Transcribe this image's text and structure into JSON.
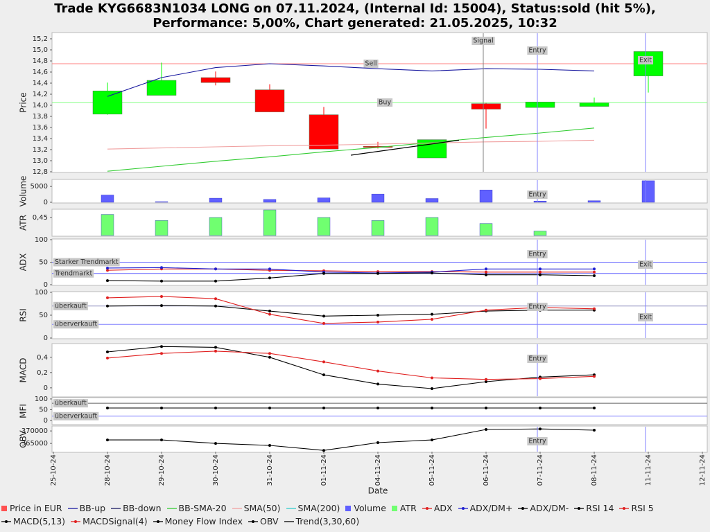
{
  "title": [
    "Trade KYG6683N1034 LONG on 07.11.2024, (Internal Id: 15004), Status:sold (hit 5%),",
    "Performance: 5,00%, Chart generated: 21.05.2025, 10:32"
  ],
  "chart_data": [
    {
      "type": "candlestick",
      "ylabel": "Price",
      "xlabel": "Date",
      "categories": [
        "25-10-24",
        "28-10-24",
        "29-10-24",
        "30-10-24",
        "31-10-24",
        "01-11-24",
        "04-11-24",
        "05-11-24",
        "06-11-24",
        "07-11-24",
        "08-11-24",
        "11-11-24",
        "12-11-24"
      ],
      "ylim": [
        12.8,
        15.3
      ],
      "yticks": [
        {
          "value": 12.8,
          "label": "12,8"
        },
        {
          "value": 13.0,
          "label": "13,0"
        },
        {
          "value": 13.2,
          "label": "13,2"
        },
        {
          "value": 13.4,
          "label": "13,4"
        },
        {
          "value": 13.6,
          "label": "13,6"
        },
        {
          "value": 13.8,
          "label": "13,8"
        },
        {
          "value": 14.0,
          "label": "14,0"
        },
        {
          "value": 14.2,
          "label": "14,2"
        },
        {
          "value": 14.4,
          "label": "14,4"
        },
        {
          "value": 14.6,
          "label": "14,6"
        },
        {
          "value": 14.8,
          "label": "14,8"
        },
        {
          "value": 15.0,
          "label": "15,0"
        },
        {
          "value": 15.2,
          "label": "15,2"
        }
      ],
      "hlines": [
        {
          "value": 14.75,
          "label": "Sell",
          "color": "#ff8080"
        },
        {
          "value": 14.05,
          "label": "Buy",
          "color": "#80ff80"
        }
      ],
      "vlines": [
        {
          "x": "06-11-24",
          "label": "Signal",
          "color": "#808080"
        },
        {
          "x": "07-11-24",
          "label": "Entry",
          "color": "#8080ff"
        },
        {
          "x": "11-11-24",
          "label": "Exit",
          "color": "#8080ff"
        }
      ],
      "series": [
        {
          "name": "Price in EUR",
          "color": "#ff5050",
          "up_color": "#00ff00",
          "down_color": "#ff0000",
          "open": [
            null,
            13.84,
            14.18,
            14.5,
            14.28,
            13.83,
            13.26,
            13.05,
            14.03,
            13.96,
            13.98,
            14.53,
            null
          ],
          "high": [
            null,
            14.41,
            14.77,
            14.61,
            14.38,
            13.97,
            13.34,
            13.38,
            14.04,
            14.06,
            14.14,
            14.97,
            null
          ],
          "low": [
            null,
            13.83,
            14.18,
            14.36,
            13.88,
            13.21,
            13.22,
            13.05,
            13.58,
            13.96,
            13.98,
            14.23,
            null
          ],
          "close": [
            null,
            14.26,
            14.45,
            14.41,
            13.88,
            13.21,
            13.24,
            13.38,
            13.93,
            14.06,
            14.04,
            14.97,
            null
          ]
        },
        {
          "name": "BB-up",
          "color": "#1a1aa0",
          "values": [
            null,
            14.16,
            14.5,
            14.68,
            14.75,
            14.71,
            14.66,
            14.62,
            14.66,
            14.65,
            14.62,
            null,
            null
          ]
        },
        {
          "name": "BB-down",
          "color": "#1a1a60"
        },
        {
          "name": "BB-SMA-20",
          "color": "#33cc33",
          "values": [
            null,
            12.81,
            12.9,
            12.99,
            13.07,
            13.16,
            13.24,
            13.33,
            13.42,
            13.5,
            13.59,
            null,
            null
          ]
        },
        {
          "name": "SMA(50)",
          "color": "#f0a0a0",
          "values": [
            null,
            13.21,
            13.23,
            13.25,
            13.27,
            13.28,
            13.3,
            13.32,
            13.34,
            13.35,
            13.37,
            null,
            null
          ]
        },
        {
          "name": "SMA(200)",
          "color": "#33cccc"
        }
      ]
    },
    {
      "type": "bar",
      "ylabel": "Volume",
      "ylim": [
        0,
        7000
      ],
      "yticks": [
        0,
        5000
      ],
      "vlines": [
        {
          "x": "07-11-24",
          "label": "Entry",
          "color": "#8080ff"
        },
        {
          "x": "11-11-24",
          "color": "#8080ff"
        }
      ],
      "series": [
        {
          "name": "Volume",
          "color": "#6060ff",
          "values": [
            null,
            2300,
            200,
            1300,
            900,
            1400,
            2600,
            1200,
            3900,
            400,
            500,
            6800,
            null
          ]
        }
      ]
    },
    {
      "type": "bar",
      "ylabel": "ATR",
      "ylim": [
        0.33,
        0.5
      ],
      "yticks": [
        {
          "value": 0.45,
          "label": "0,45"
        }
      ],
      "series": [
        {
          "name": "ATR",
          "color": "#70ff70",
          "values": [
            null,
            0.47,
            0.43,
            0.45,
            0.5,
            0.45,
            0.43,
            0.45,
            0.41,
            0.36,
            null,
            null,
            null
          ]
        }
      ]
    },
    {
      "type": "line",
      "ylabel": "ADX",
      "ylim": [
        0,
        100
      ],
      "yticks": [
        0,
        50,
        100
      ],
      "markers": true,
      "hlines": [
        {
          "value": 50,
          "label": "Starker Trendmarkt",
          "color": "#6060ff"
        },
        {
          "value": 25,
          "label": "Trendmarkt",
          "color": "#6060ff"
        }
      ],
      "vlines": [
        {
          "x": "07-11-24",
          "label": "Entry",
          "color": "#8080ff"
        },
        {
          "x": "11-11-24",
          "label": "Exit",
          "color": "#8080ff"
        }
      ],
      "series": [
        {
          "name": "ADX",
          "color": "#e02020",
          "values": [
            null,
            32,
            35,
            35,
            32,
            31,
            29,
            29,
            28,
            28,
            28,
            null,
            null
          ]
        },
        {
          "name": "ADX/DM+",
          "color": "#2020d0",
          "values": [
            null,
            37,
            38,
            35,
            35,
            28,
            26,
            28,
            35,
            35,
            35,
            null,
            null
          ]
        },
        {
          "name": "ADX/DM-",
          "color": "#000000",
          "values": [
            null,
            9,
            8,
            8,
            15,
            25,
            25,
            26,
            22,
            22,
            20,
            null,
            null
          ]
        }
      ]
    },
    {
      "type": "line",
      "ylabel": "RSI",
      "ylim": [
        0,
        100
      ],
      "yticks": [
        0,
        50,
        100
      ],
      "markers": true,
      "hlines": [
        {
          "value": 70,
          "label": "überkauft",
          "color": "#9090c0"
        },
        {
          "value": 30,
          "label": "überverkauft",
          "color": "#8080ff"
        }
      ],
      "vlines": [
        {
          "x": "07-11-24",
          "label": "Entry",
          "color": "#8080ff"
        },
        {
          "x": "11-11-24",
          "label": "Exit",
          "color": "#8080ff"
        }
      ],
      "series": [
        {
          "name": "RSI 14",
          "color": "#000000",
          "values": [
            null,
            70,
            71,
            70,
            59,
            48,
            50,
            52,
            59,
            61,
            61,
            null,
            null
          ]
        },
        {
          "name": "RSI 5",
          "color": "#e02020",
          "values": [
            null,
            88,
            91,
            86,
            52,
            32,
            35,
            41,
            61,
            67,
            64,
            null,
            null
          ]
        }
      ]
    },
    {
      "type": "line",
      "ylabel": "MACD",
      "ylim": [
        -0.11,
        0.57
      ],
      "yticks": [
        0,
        {
          "value": 0.2,
          "label": "0,2"
        },
        {
          "value": 0.4,
          "label": "0,4"
        }
      ],
      "markers": true,
      "vlines": [
        {
          "x": "07-11-24",
          "label": "Entry",
          "color": "#8080ff"
        }
      ],
      "series": [
        {
          "name": "MACD(5,13)",
          "color": "#000000",
          "values": [
            null,
            0.47,
            0.54,
            0.53,
            0.4,
            0.17,
            0.05,
            -0.01,
            0.08,
            0.14,
            0.17,
            null,
            null
          ]
        },
        {
          "name": "MACDSignal(4)",
          "color": "#e02020",
          "values": [
            null,
            0.39,
            0.45,
            0.48,
            0.45,
            0.34,
            0.22,
            0.13,
            0.11,
            0.12,
            0.15,
            null,
            null
          ]
        }
      ]
    },
    {
      "type": "line",
      "ylabel": "MFI",
      "ylim": [
        -16,
        103
      ],
      "yticks": [
        0,
        50,
        100
      ],
      "markers": true,
      "hlines": [
        {
          "value": 80,
          "label": "überkauft",
          "color": "#606060"
        },
        {
          "value": 20,
          "label": "überverkauft",
          "color": "#8080ff"
        }
      ],
      "series": [
        {
          "name": "Money Flow Index",
          "color": "#000000",
          "values": [
            null,
            58,
            58,
            58,
            58,
            58,
            58,
            58,
            58,
            58,
            58,
            null,
            null
          ]
        }
      ]
    },
    {
      "type": "line",
      "ylabel": "OBV",
      "ylim": [
        361700,
        371700
      ],
      "yticks": [
        365000,
        370000
      ],
      "markers": true,
      "vlines": [
        {
          "x": "07-11-24",
          "label": "Entry",
          "color": "#8080ff"
        },
        {
          "x": "11-11-24",
          "color": "#8080ff"
        }
      ],
      "series": [
        {
          "name": "OBV",
          "color": "#000000",
          "values": [
            null,
            366400,
            366400,
            365000,
            364200,
            362200,
            365300,
            366400,
            370600,
            370800,
            370300,
            null,
            null
          ]
        }
      ]
    },
    {
      "type": "trend",
      "name": "Trend(3,30,60)",
      "color": "#000000",
      "x": [
        5.5,
        7.5
      ],
      "values": [
        13.1,
        13.37
      ]
    }
  ]
}
